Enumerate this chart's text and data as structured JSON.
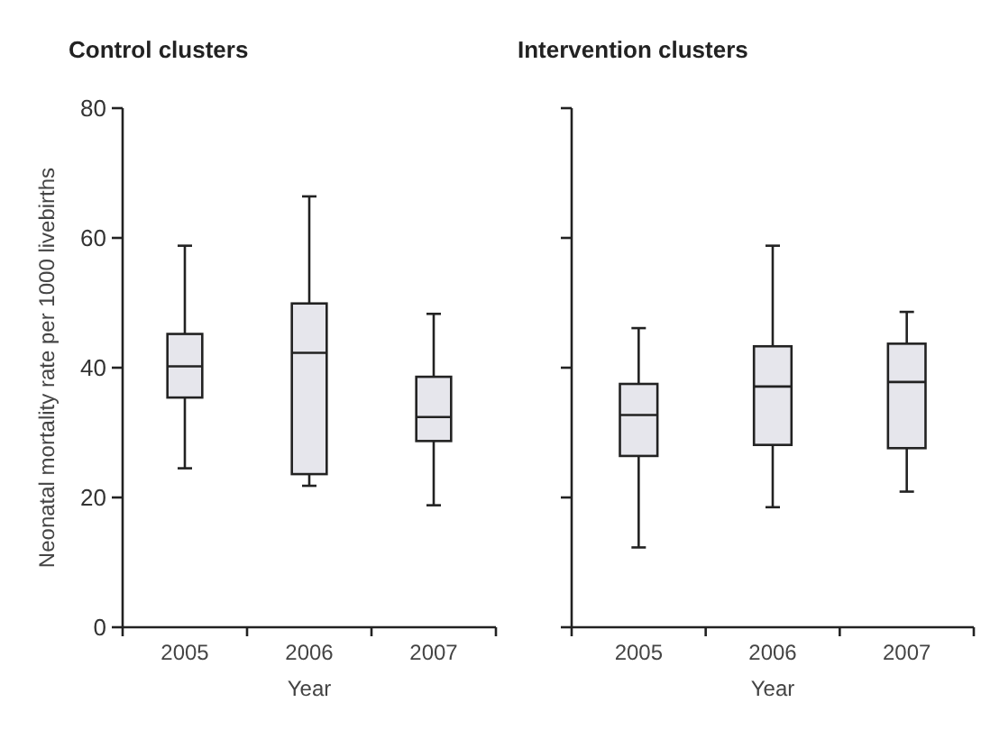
{
  "chart_data": [
    {
      "type": "box",
      "title": "Control clusters",
      "xlabel": "Year",
      "ylabel": "Neonatal mortality rate per 1000 livebirths",
      "categories": [
        "2005",
        "2006",
        "2007"
      ],
      "ylim": [
        0,
        80
      ],
      "yticks": [
        0,
        20,
        40,
        60,
        80
      ],
      "color": "#e6e6ec",
      "boxes": [
        {
          "low": 24.5,
          "q1": 35.4,
          "median": 40.2,
          "q3": 45.2,
          "high": 58.8
        },
        {
          "low": 21.8,
          "q1": 23.6,
          "median": 42.3,
          "q3": 49.9,
          "high": 66.4
        },
        {
          "low": 18.8,
          "q1": 28.7,
          "median": 32.4,
          "q3": 38.6,
          "high": 48.3
        }
      ]
    },
    {
      "type": "box",
      "title": "Intervention clusters",
      "xlabel": "Year",
      "categories": [
        "2005",
        "2006",
        "2007"
      ],
      "ylim": [
        0,
        80
      ],
      "yticks": [
        0,
        20,
        40,
        60,
        80
      ],
      "tick_labels": "x",
      "color": "#e6e6ec",
      "boxes": [
        {
          "low": 12.3,
          "q1": 26.4,
          "median": 32.7,
          "q3": 37.5,
          "high": 46.1
        },
        {
          "low": 18.5,
          "q1": 28.1,
          "median": 37.1,
          "q3": 43.3,
          "high": 58.8
        },
        {
          "low": 20.9,
          "q1": 27.6,
          "median": 37.8,
          "q3": 43.7,
          "high": 48.6
        }
      ]
    }
  ]
}
